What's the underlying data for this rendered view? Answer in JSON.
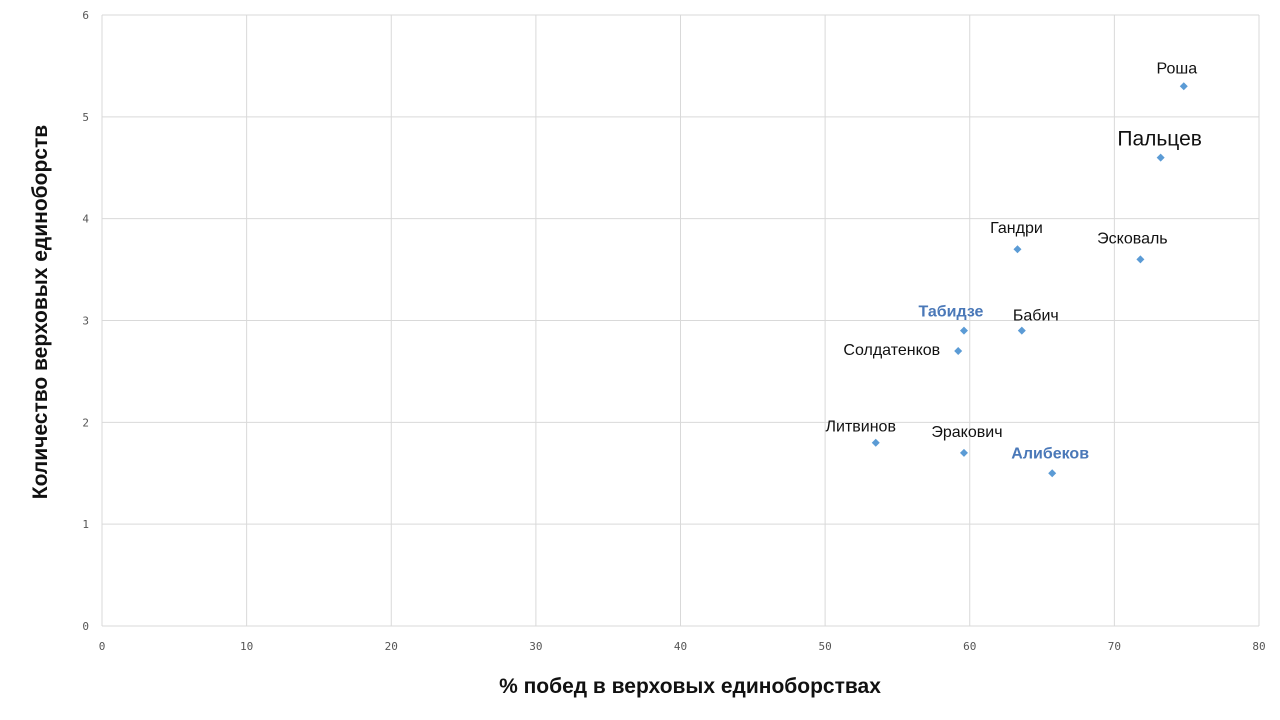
{
  "chart_data": {
    "type": "scatter",
    "xlabel": "% побед в верховых единоборствах",
    "ylabel": "Количество верховых единоборств",
    "xlim": [
      0,
      80
    ],
    "ylim": [
      0,
      6
    ],
    "x_ticks": [
      0,
      10,
      20,
      30,
      40,
      50,
      60,
      70,
      80
    ],
    "y_ticks": [
      0,
      1,
      2,
      3,
      4,
      5,
      6
    ],
    "grid": true,
    "marker": "diamond",
    "marker_color": "#5b9bd5",
    "highlight_color": "#4a78b8",
    "points": [
      {
        "label": "Роша",
        "x": 74.8,
        "y": 5.3,
        "style": "normal"
      },
      {
        "label": "Пальцев",
        "x": 73.2,
        "y": 4.6,
        "style": "big"
      },
      {
        "label": "Гандри",
        "x": 63.3,
        "y": 3.7,
        "style": "normal"
      },
      {
        "label": "Эсковаль",
        "x": 71.8,
        "y": 3.6,
        "style": "normal"
      },
      {
        "label": "Табидзе",
        "x": 59.6,
        "y": 2.9,
        "style": "highlight"
      },
      {
        "label": "Бабич",
        "x": 63.6,
        "y": 2.9,
        "style": "normal"
      },
      {
        "label": "Солдатенков",
        "x": 59.2,
        "y": 2.7,
        "style": "normal"
      },
      {
        "label": "Литвинов",
        "x": 53.5,
        "y": 1.8,
        "style": "normal"
      },
      {
        "label": "Эракович",
        "x": 59.6,
        "y": 1.7,
        "style": "normal"
      },
      {
        "label": "Алибеков",
        "x": 65.7,
        "y": 1.5,
        "style": "highlight"
      }
    ]
  }
}
